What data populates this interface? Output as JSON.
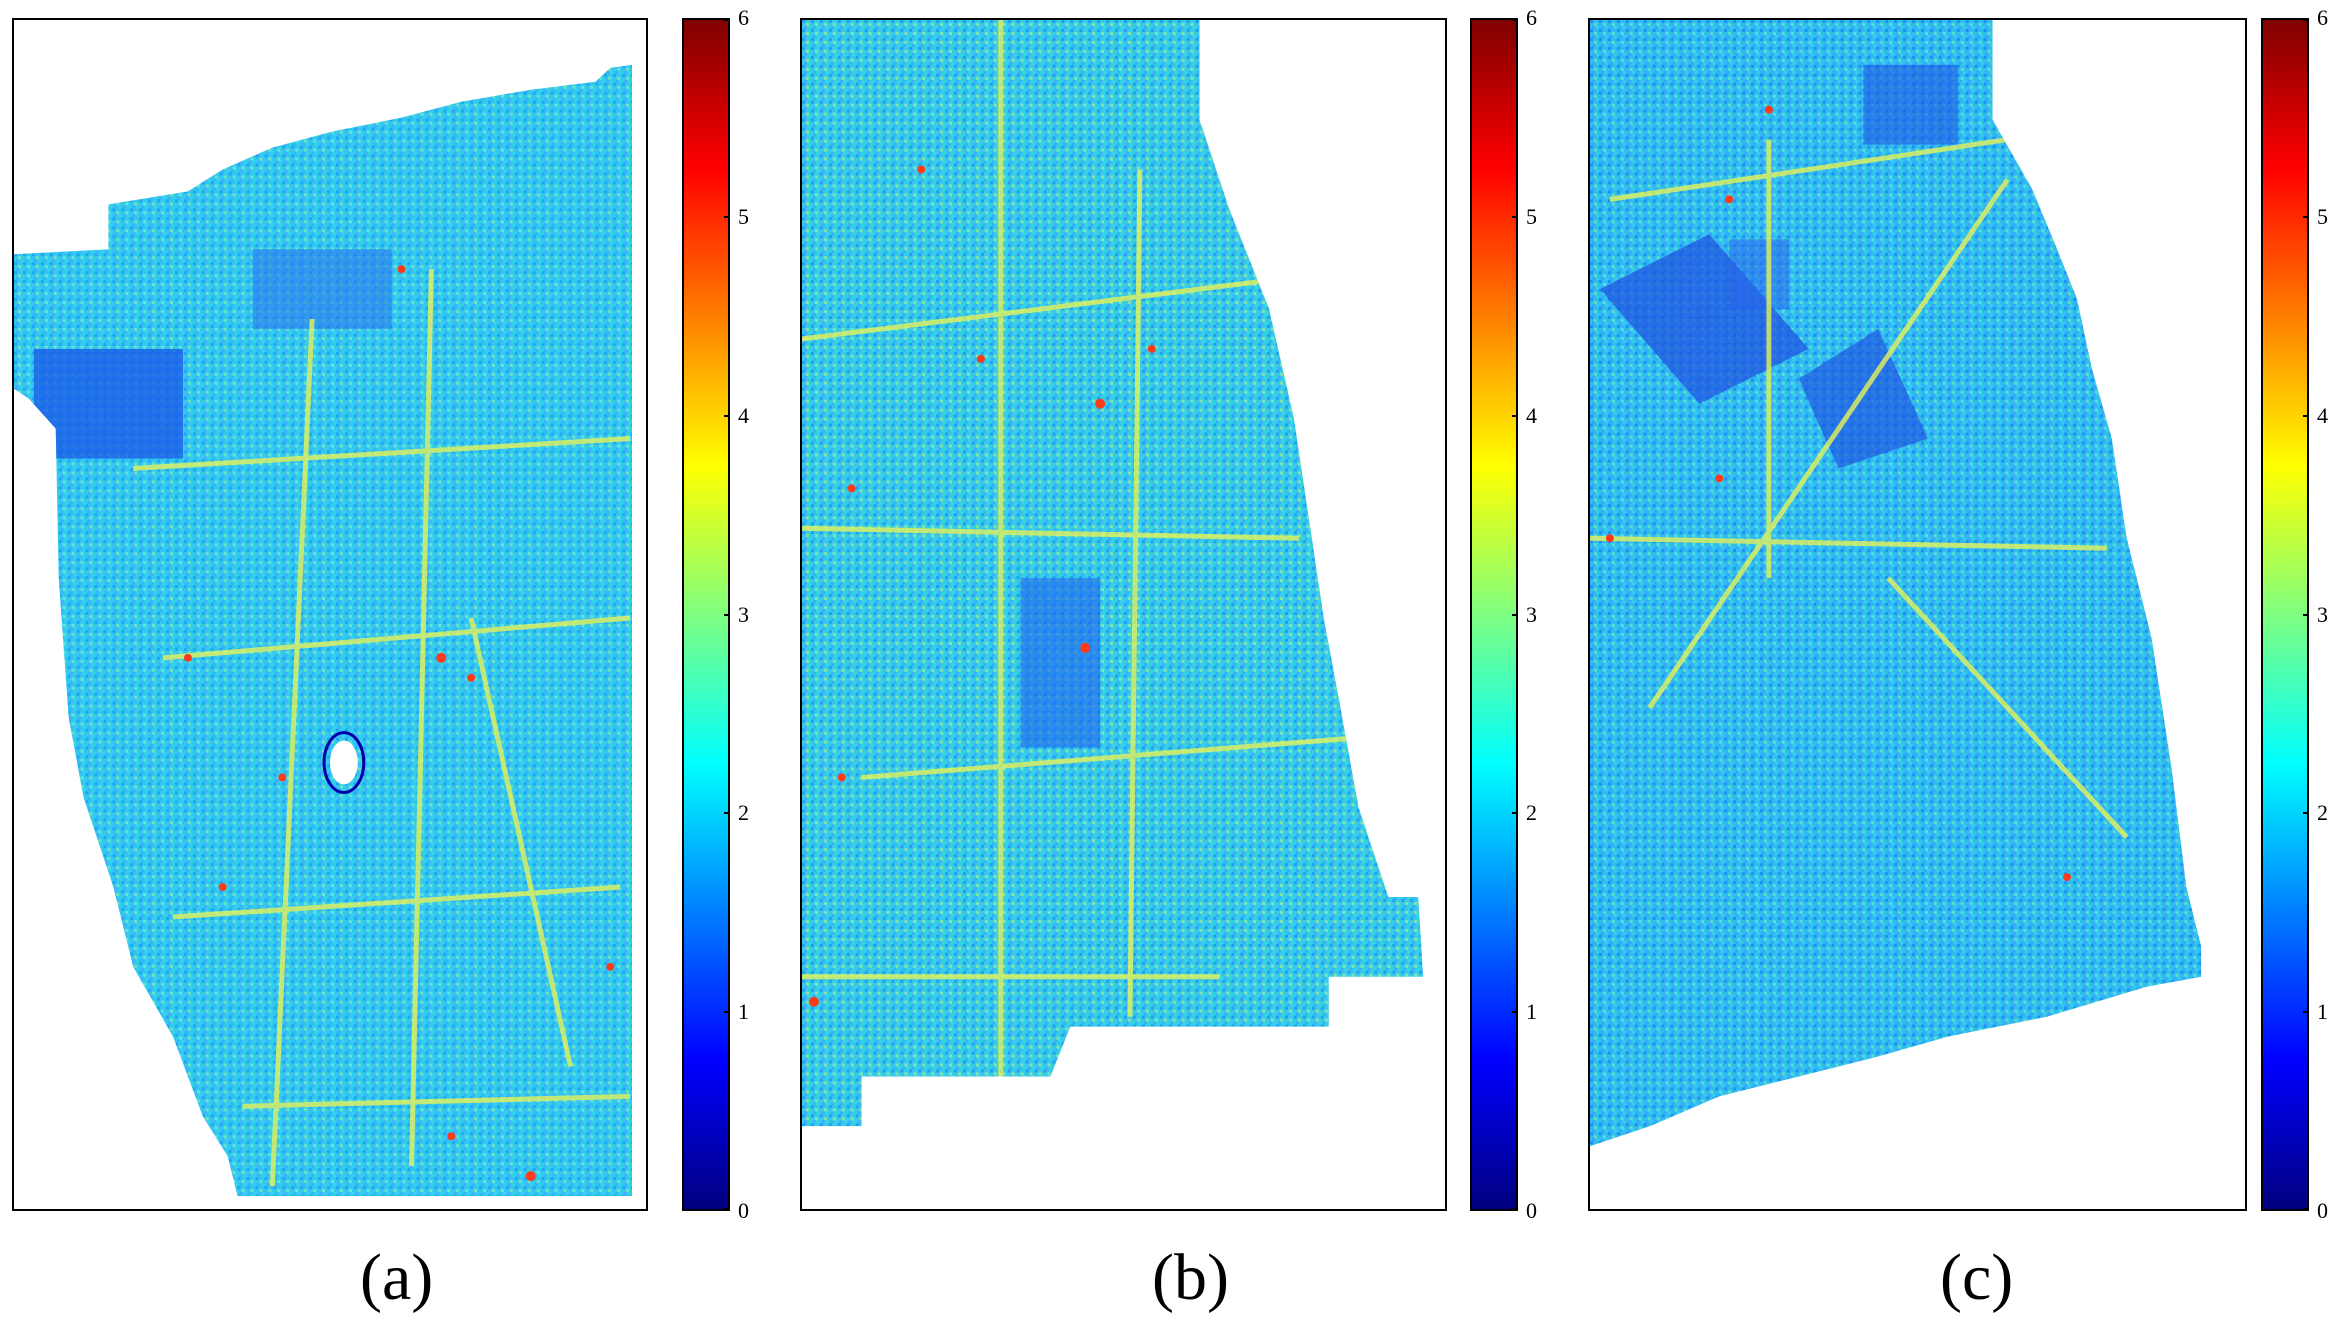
{
  "panels": [
    {
      "id": "a",
      "caption": "(a)"
    },
    {
      "id": "b",
      "caption": "(b)"
    },
    {
      "id": "c",
      "caption": "(c)"
    }
  ],
  "colorbar": {
    "colormap": "jet",
    "range": [
      0,
      6
    ],
    "ticks": [
      "0",
      "1",
      "2",
      "3",
      "4",
      "5",
      "6"
    ],
    "colors": [
      "#00007f",
      "#0000ff",
      "#007fff",
      "#00ffff",
      "#7fff7f",
      "#ffff00",
      "#ff7f00",
      "#ff0000",
      "#7f0000"
    ]
  }
}
